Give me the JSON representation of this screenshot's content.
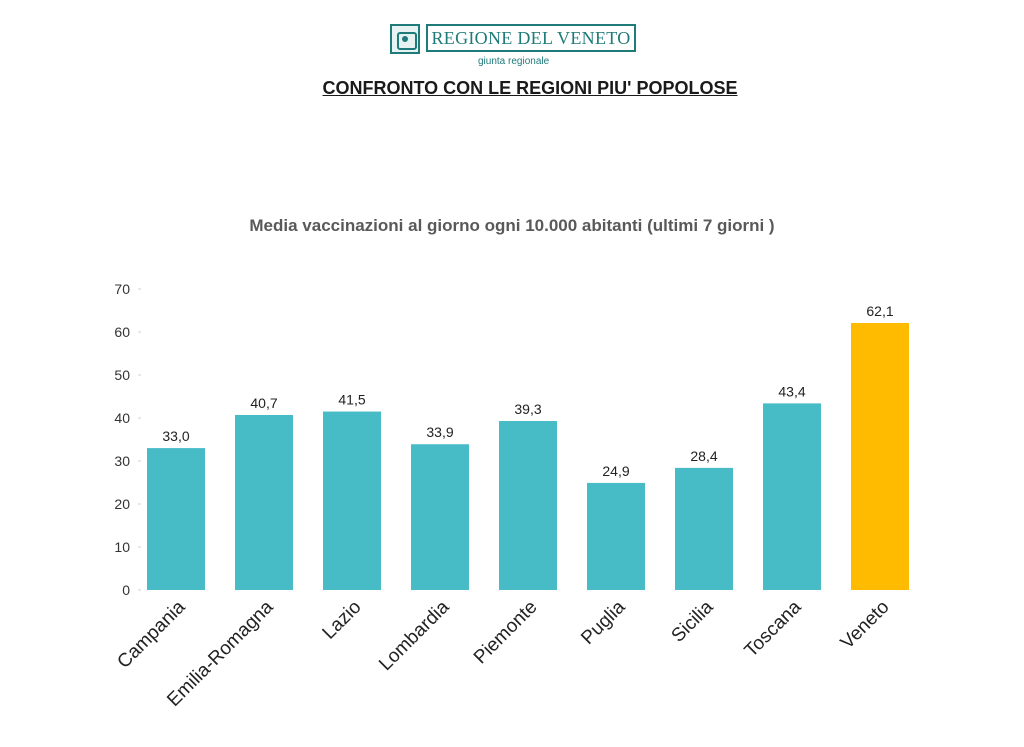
{
  "header": {
    "logo_text": "REGIONE DEL VENETO",
    "logo_subtitle": "giunta regionale",
    "page_title": "CONFRONTO CON LE REGIONI PIU' POPOLOSE"
  },
  "colors": {
    "bar_default": "#47BCC6",
    "bar_highlight": "#FFBB00",
    "brand": "#1F7A7A"
  },
  "chart_data": {
    "type": "bar",
    "title": "Media vaccinazioni al giorno ogni 10.000 abitanti (ultimi 7 giorni )",
    "xlabel": "",
    "ylabel": "",
    "ylim": [
      0,
      70
    ],
    "yticks": [
      0,
      10,
      20,
      30,
      40,
      50,
      60,
      70
    ],
    "categories": [
      "Campania",
      "Emilia-Romagna",
      "Lazio",
      "Lombardia",
      "Piemonte",
      "Puglia",
      "Sicilia",
      "Toscana",
      "Veneto"
    ],
    "values": [
      33.0,
      40.7,
      41.5,
      33.9,
      39.3,
      24.9,
      28.4,
      43.4,
      62.1
    ],
    "data_labels": [
      "33,0",
      "40,7",
      "41,5",
      "33,9",
      "39,3",
      "24,9",
      "28,4",
      "43,4",
      "62,1"
    ],
    "highlight_category": "Veneto",
    "grid": false,
    "legend": "none"
  }
}
